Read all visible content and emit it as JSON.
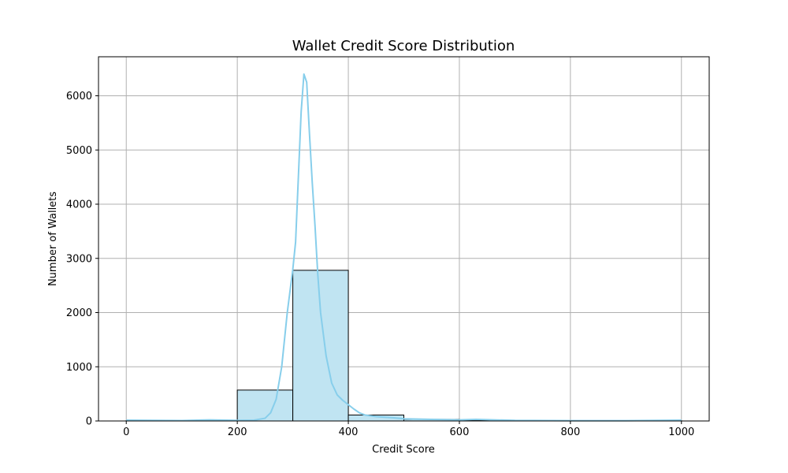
{
  "chart_data": {
    "type": "bar",
    "title": "Wallet Credit Score Distribution",
    "xlabel": "Credit Score",
    "ylabel": "Number of Wallets",
    "xlim": [
      -50,
      1050
    ],
    "ylim": [
      0,
      6720
    ],
    "x_ticks": [
      0,
      200,
      400,
      600,
      800,
      1000
    ],
    "y_ticks": [
      0,
      1000,
      2000,
      3000,
      4000,
      5000,
      6000
    ],
    "grid": true,
    "bar_color": "#c0e4f2",
    "kde_color": "#87ceeb",
    "bins": [
      {
        "start": 0,
        "end": 100,
        "value": 5
      },
      {
        "start": 100,
        "end": 200,
        "value": 10
      },
      {
        "start": 200,
        "end": 300,
        "value": 570
      },
      {
        "start": 300,
        "end": 400,
        "value": 2780
      },
      {
        "start": 400,
        "end": 500,
        "value": 110
      },
      {
        "start": 500,
        "end": 600,
        "value": 30
      },
      {
        "start": 600,
        "end": 700,
        "value": 10
      },
      {
        "start": 700,
        "end": 800,
        "value": 3
      },
      {
        "start": 800,
        "end": 900,
        "value": 2
      },
      {
        "start": 900,
        "end": 1000,
        "value": 5
      }
    ],
    "kde_curve": [
      [
        0,
        15
      ],
      [
        100,
        8
      ],
      [
        150,
        20
      ],
      [
        200,
        10
      ],
      [
        230,
        15
      ],
      [
        250,
        50
      ],
      [
        260,
        150
      ],
      [
        270,
        400
      ],
      [
        280,
        1000
      ],
      [
        290,
        2000
      ],
      [
        300,
        2800
      ],
      [
        305,
        3300
      ],
      [
        310,
        4500
      ],
      [
        315,
        5700
      ],
      [
        320,
        6400
      ],
      [
        325,
        6250
      ],
      [
        330,
        5300
      ],
      [
        335,
        4400
      ],
      [
        340,
        3600
      ],
      [
        345,
        2700
      ],
      [
        350,
        2000
      ],
      [
        360,
        1200
      ],
      [
        370,
        700
      ],
      [
        380,
        480
      ],
      [
        390,
        380
      ],
      [
        400,
        300
      ],
      [
        410,
        220
      ],
      [
        420,
        150
      ],
      [
        430,
        110
      ],
      [
        450,
        80
      ],
      [
        480,
        60
      ],
      [
        500,
        40
      ],
      [
        550,
        30
      ],
      [
        600,
        20
      ],
      [
        630,
        30
      ],
      [
        700,
        10
      ],
      [
        800,
        5
      ],
      [
        900,
        5
      ],
      [
        1000,
        15
      ]
    ]
  }
}
